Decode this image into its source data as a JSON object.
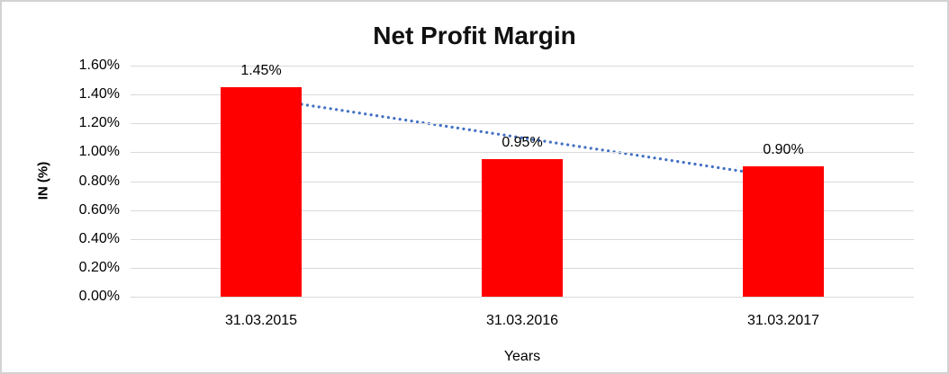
{
  "frame": {
    "background_color": "#FFFFFF",
    "border_color": "#D2D2D2"
  },
  "chart_data": {
    "type": "bar",
    "title": "Net Profit Margin",
    "xlabel": "Years",
    "ylabel": "IN (%)",
    "categories": [
      "31.03.2015",
      "31.03.2016",
      "31.03.2017"
    ],
    "values": [
      1.45,
      0.95,
      0.9
    ],
    "value_labels": [
      "1.45%",
      "0.95%",
      "0.90%"
    ],
    "ylim": [
      0,
      1.6
    ],
    "ytick_step": 0.2,
    "yticks": [
      "1.60%",
      "1.40%",
      "1.20%",
      "1.00%",
      "0.80%",
      "0.60%",
      "0.40%",
      "0.20%",
      "0.00%"
    ],
    "grid": true,
    "gridline_color": "#D9D9D9",
    "legend_position": "none",
    "bar_color": "#FF0000",
    "trendline": {
      "type": "linear",
      "style": "dotted",
      "color": "#4472C4",
      "start_value": 1.375,
      "end_value": 0.825
    }
  }
}
